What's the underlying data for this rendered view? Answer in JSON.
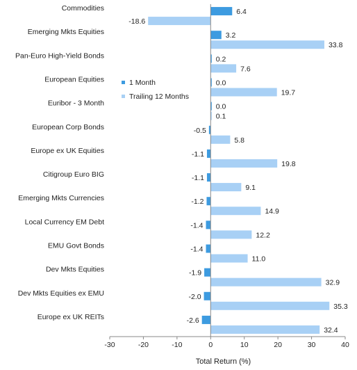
{
  "chart_data": {
    "type": "bar",
    "orientation": "horizontal",
    "categories": [
      "Commodities",
      "Emerging Mkts Equities",
      "Pan-Euro High-Yield Bonds",
      "European Equities",
      "Euribor - 3 Month",
      "European Corp Bonds",
      "Europe ex UK Equities",
      "Citigroup Euro BIG",
      "Emerging Mkts Currencies",
      "Local Currency EM Debt",
      "EMU Govt Bonds",
      "Dev Mkts Equities",
      "Dev Mkts Equities ex EMU",
      "Europe ex UK REITs"
    ],
    "series": [
      {
        "name": "1 Month",
        "color": "#3d9be0",
        "values": [
          6.4,
          3.2,
          0.2,
          0.0,
          0.0,
          -0.5,
          -1.1,
          -1.1,
          -1.2,
          -1.4,
          -1.4,
          -1.9,
          -2.0,
          -2.6
        ],
        "labels": [
          "6.4",
          "3.2",
          "0.2",
          "0.0",
          "0.0",
          "-0.5",
          "-1.1",
          "-1.1",
          "-1.2",
          "-1.4",
          "-1.4",
          "-1.9",
          "-2.0",
          "-2.6"
        ]
      },
      {
        "name": "Trailing 12 Months",
        "color": "#a8d0f5",
        "values": [
          -18.6,
          33.8,
          7.6,
          19.7,
          0.1,
          5.8,
          19.8,
          9.1,
          14.9,
          12.2,
          11.0,
          32.9,
          35.3,
          32.4
        ],
        "labels": [
          "-18.6",
          "33.8",
          "7.6",
          "19.7",
          "0.1",
          "5.8",
          "19.8",
          "9.1",
          "14.9",
          "12.2",
          "11.0",
          "32.9",
          "35.3",
          "32.4"
        ]
      }
    ],
    "xlabel": "Total Return (%)",
    "xlim": [
      -30,
      40
    ],
    "xticks": [
      -30,
      -20,
      -10,
      0,
      10,
      20,
      30,
      40
    ],
    "grid": false,
    "legend_position": "upper-left"
  }
}
